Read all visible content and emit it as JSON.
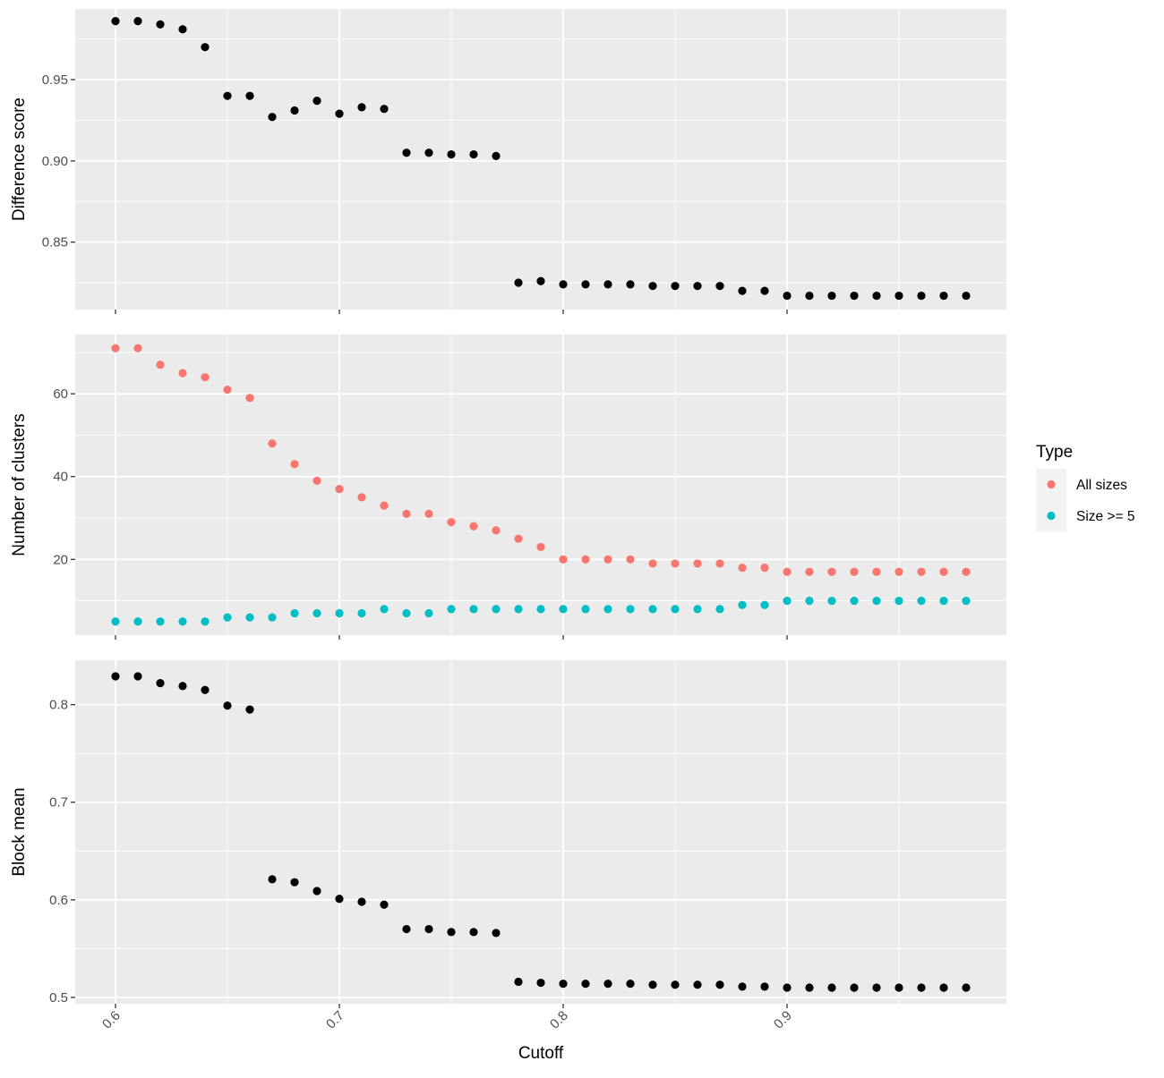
{
  "chart_data": {
    "type": "scatter",
    "xlabel": "Cutoff",
    "x": [
      0.6,
      0.61,
      0.62,
      0.63,
      0.64,
      0.65,
      0.66,
      0.67,
      0.68,
      0.69,
      0.7,
      0.71,
      0.72,
      0.73,
      0.74,
      0.75,
      0.76,
      0.77,
      0.78,
      0.79,
      0.8,
      0.81,
      0.82,
      0.83,
      0.84,
      0.85,
      0.86,
      0.87,
      0.88,
      0.89,
      0.9,
      0.91,
      0.92,
      0.93,
      0.94,
      0.95,
      0.96,
      0.97,
      0.98
    ],
    "xlim": [
      0.582,
      0.998
    ],
    "xticks": [
      0.6,
      0.7,
      0.8,
      0.9
    ],
    "xtick_labels": [
      "0.6",
      "0.7",
      "0.8",
      "0.9"
    ],
    "grid": true,
    "legend": {
      "title": "Type",
      "position": "right",
      "entries": [
        {
          "label": "All sizes",
          "color": "#F8766D"
        },
        {
          "label": "Size >= 5",
          "color": "#00BFC4"
        }
      ]
    },
    "panels": [
      {
        "ylabel": "Difference score",
        "ylim": [
          0.8085,
          0.9935
        ],
        "yticks": [
          0.85,
          0.9,
          0.95
        ],
        "ytick_labels": [
          "0.85",
          "0.90",
          "0.95"
        ],
        "series": [
          {
            "color": "#000000",
            "values": [
              0.986,
              0.986,
              0.984,
              0.981,
              0.97,
              0.94,
              0.94,
              0.927,
              0.931,
              0.937,
              0.929,
              0.933,
              0.932,
              0.905,
              0.905,
              0.904,
              0.904,
              0.903,
              0.825,
              0.826,
              0.824,
              0.824,
              0.824,
              0.824,
              0.823,
              0.823,
              0.823,
              0.823,
              0.82,
              0.82,
              0.817,
              0.817,
              0.817,
              0.817,
              0.817,
              0.817,
              0.817,
              0.817,
              0.817
            ]
          }
        ]
      },
      {
        "ylabel": "Number of clusters",
        "ylim": [
          1.7,
          74.3
        ],
        "yticks": [
          20,
          40,
          60
        ],
        "ytick_labels": [
          "20",
          "40",
          "60"
        ],
        "series": [
          {
            "name": "All sizes",
            "color": "#F8766D",
            "values": [
              71,
              71,
              67,
              65,
              64,
              61,
              59,
              48,
              43,
              39,
              37,
              35,
              33,
              31,
              31,
              29,
              28,
              27,
              25,
              23,
              20,
              20,
              20,
              20,
              19,
              19,
              19,
              19,
              18,
              18,
              17,
              17,
              17,
              17,
              17,
              17,
              17,
              17,
              17
            ]
          },
          {
            "name": "Size >= 5",
            "color": "#00BFC4",
            "values": [
              5,
              5,
              5,
              5,
              5,
              6,
              6,
              6,
              7,
              7,
              7,
              7,
              8,
              7,
              7,
              8,
              8,
              8,
              8,
              8,
              8,
              8,
              8,
              8,
              8,
              8,
              8,
              8,
              9,
              9,
              10,
              10,
              10,
              10,
              10,
              10,
              10,
              10,
              10
            ]
          }
        ]
      },
      {
        "ylabel": "Block mean",
        "ylim": [
          0.4935,
          0.8455
        ],
        "yticks": [
          0.5,
          0.6,
          0.7,
          0.8
        ],
        "ytick_labels": [
          "0.5",
          "0.6",
          "0.7",
          "0.8"
        ],
        "series": [
          {
            "color": "#000000",
            "values": [
              0.829,
              0.829,
              0.822,
              0.819,
              0.815,
              0.799,
              0.795,
              0.621,
              0.618,
              0.609,
              0.601,
              0.598,
              0.595,
              0.57,
              0.57,
              0.567,
              0.567,
              0.566,
              0.516,
              0.515,
              0.514,
              0.514,
              0.514,
              0.514,
              0.513,
              0.513,
              0.513,
              0.513,
              0.511,
              0.511,
              0.51,
              0.51,
              0.51,
              0.51,
              0.51,
              0.51,
              0.51,
              0.51,
              0.51
            ]
          }
        ]
      }
    ]
  }
}
